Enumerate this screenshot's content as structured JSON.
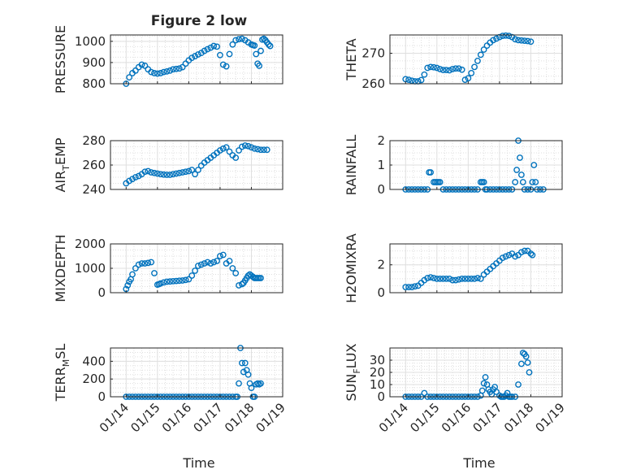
{
  "title": "Figure 2 low",
  "colors": {
    "marker": "#0072BD",
    "axis": "#262626",
    "grid": "#dfdfdf"
  },
  "xlabel": "Time",
  "xticks": [
    "01/14",
    "01/15",
    "01/16",
    "01/17",
    "01/18",
    "01/19"
  ],
  "chart_data": [
    {
      "type": "scatter",
      "name": "pressure",
      "ylabel": "PRESSURE",
      "ylim": [
        800,
        1030
      ],
      "yticks": [
        800,
        900,
        1000
      ],
      "x": [
        0.0,
        0.1,
        0.2,
        0.3,
        0.4,
        0.5,
        0.6,
        0.7,
        0.8,
        0.9,
        1.0,
        1.1,
        1.2,
        1.3,
        1.4,
        1.5,
        1.6,
        1.7,
        1.8,
        1.9,
        2.0,
        2.1,
        2.2,
        2.3,
        2.4,
        2.5,
        2.6,
        2.7,
        2.8,
        2.9,
        3.0,
        3.1,
        3.2,
        3.3,
        3.4,
        3.5,
        3.6,
        3.7,
        3.8,
        3.9,
        4.0,
        4.05,
        4.1,
        4.15,
        4.2,
        4.25,
        4.3,
        4.35,
        4.4,
        4.45,
        4.5,
        4.55,
        4.6
      ],
      "y": [
        800,
        830,
        850,
        862,
        878,
        890,
        885,
        868,
        855,
        850,
        848,
        850,
        855,
        858,
        862,
        868,
        870,
        872,
        878,
        895,
        910,
        922,
        930,
        938,
        945,
        955,
        963,
        970,
        978,
        975,
        935,
        890,
        882,
        940,
        985,
        1005,
        1010,
        1012,
        1005,
        995,
        985,
        982,
        980,
        940,
        895,
        885,
        955,
        1008,
        1012,
        1005,
        995,
        985,
        978
      ]
    },
    {
      "type": "scatter",
      "name": "theta",
      "ylabel": "THETA",
      "ylim": [
        260,
        276
      ],
      "yticks": [
        260,
        270
      ],
      "x": [
        0.0,
        0.1,
        0.2,
        0.3,
        0.4,
        0.5,
        0.6,
        0.7,
        0.8,
        0.9,
        1.0,
        1.1,
        1.2,
        1.3,
        1.4,
        1.5,
        1.6,
        1.7,
        1.8,
        1.9,
        2.0,
        2.1,
        2.2,
        2.3,
        2.4,
        2.5,
        2.6,
        2.7,
        2.8,
        2.9,
        3.0,
        3.1,
        3.2,
        3.3,
        3.4,
        3.5,
        3.6,
        3.7,
        3.8,
        3.9,
        4.0
      ],
      "y": [
        261.5,
        261.3,
        261,
        260.8,
        260.8,
        261.2,
        263,
        265.2,
        265.5,
        265.4,
        265.2,
        264.8,
        264.5,
        264.5,
        264.4,
        264.8,
        265,
        265,
        264.6,
        261.3,
        261.8,
        263.5,
        265.5,
        267.5,
        269.5,
        271.2,
        272.5,
        273.5,
        274.3,
        274.8,
        275.3,
        275.7,
        275.8,
        275.7,
        275.3,
        274.6,
        274.3,
        274.2,
        274.1,
        274,
        273.8
      ]
    },
    {
      "type": "scatter",
      "name": "air_temp",
      "ylabel": "AIR_TEMP",
      "ylim": [
        240,
        280
      ],
      "yticks": [
        240,
        260,
        280
      ],
      "x": [
        0.0,
        0.1,
        0.2,
        0.3,
        0.4,
        0.5,
        0.6,
        0.7,
        0.8,
        0.9,
        1.0,
        1.1,
        1.2,
        1.3,
        1.4,
        1.5,
        1.6,
        1.7,
        1.8,
        1.9,
        2.0,
        2.1,
        2.2,
        2.3,
        2.4,
        2.5,
        2.6,
        2.7,
        2.8,
        2.9,
        3.0,
        3.1,
        3.2,
        3.3,
        3.4,
        3.5,
        3.6,
        3.7,
        3.8,
        3.9,
        4.0,
        4.1,
        4.2,
        4.3,
        4.4,
        4.5
      ],
      "y": [
        245,
        247,
        248.5,
        250,
        251,
        252.5,
        254.5,
        255,
        254,
        253.5,
        253,
        252.5,
        252.2,
        252,
        252,
        252.5,
        253,
        253.5,
        254,
        254.5,
        255,
        256,
        252.5,
        256,
        259.5,
        262,
        264,
        266,
        268,
        270,
        272,
        273.5,
        274.5,
        271,
        268,
        266,
        272,
        275,
        276,
        275.5,
        274.5,
        273.5,
        273,
        272.5,
        272.5,
        272.5
      ]
    },
    {
      "type": "scatter",
      "name": "rainfall",
      "ylabel": "RAINFALL",
      "ylim": [
        0,
        2
      ],
      "yticks": [
        0,
        1,
        2
      ],
      "x": [
        0.0,
        0.1,
        0.2,
        0.3,
        0.4,
        0.5,
        0.6,
        0.7,
        0.75,
        0.8,
        0.9,
        0.95,
        1.0,
        1.05,
        1.1,
        1.2,
        1.3,
        1.4,
        1.5,
        1.6,
        1.7,
        1.8,
        1.9,
        2.0,
        2.1,
        2.2,
        2.3,
        2.4,
        2.45,
        2.5,
        2.55,
        2.6,
        2.7,
        2.8,
        2.9,
        3.0,
        3.1,
        3.2,
        3.3,
        3.4,
        3.5,
        3.55,
        3.6,
        3.65,
        3.7,
        3.75,
        3.8,
        3.9,
        4.0,
        4.05,
        4.1,
        4.15,
        4.2,
        4.3,
        4.4
      ],
      "y": [
        0,
        0,
        0,
        0,
        0,
        0,
        0,
        0,
        0.7,
        0.7,
        0.3,
        0.3,
        0.3,
        0.3,
        0.3,
        0,
        0,
        0,
        0,
        0,
        0,
        0,
        0,
        0,
        0,
        0,
        0,
        0.3,
        0.3,
        0.3,
        0,
        0,
        0,
        0,
        0,
        0,
        0,
        0,
        0,
        0,
        0.3,
        0.8,
        2.0,
        1.3,
        0.6,
        0.3,
        0,
        0,
        0,
        0.3,
        1.0,
        0.3,
        0,
        0,
        0
      ]
    },
    {
      "type": "scatter",
      "name": "mixdepth",
      "ylabel": "MIXDEPTH",
      "ylim": [
        0,
        2000
      ],
      "yticks": [
        0,
        1000,
        2000
      ],
      "x": [
        0.0,
        0.05,
        0.1,
        0.15,
        0.2,
        0.3,
        0.4,
        0.5,
        0.6,
        0.7,
        0.8,
        0.9,
        1.0,
        1.05,
        1.1,
        1.2,
        1.3,
        1.4,
        1.5,
        1.6,
        1.7,
        1.8,
        1.9,
        2.0,
        2.1,
        2.2,
        2.3,
        2.4,
        2.5,
        2.6,
        2.7,
        2.8,
        2.9,
        3.0,
        3.1,
        3.2,
        3.3,
        3.4,
        3.5,
        3.6,
        3.7,
        3.75,
        3.8,
        3.85,
        3.9,
        3.95,
        4.0,
        4.05,
        4.1,
        4.15,
        4.2,
        4.25,
        4.3
      ],
      "y": [
        150,
        300,
        450,
        550,
        750,
        1000,
        1150,
        1200,
        1200,
        1220,
        1250,
        800,
        330,
        350,
        380,
        420,
        450,
        460,
        470,
        480,
        490,
        500,
        520,
        550,
        700,
        900,
        1100,
        1150,
        1200,
        1250,
        1200,
        1250,
        1300,
        1500,
        1550,
        1200,
        1300,
        1000,
        800,
        300,
        350,
        400,
        500,
        600,
        700,
        750,
        700,
        650,
        600,
        600,
        600,
        600,
        600
      ]
    },
    {
      "type": "scatter",
      "name": "h2omixra",
      "ylabel": "H2OMIXRA",
      "ylim": [
        0,
        3.5
      ],
      "yticks": [
        0,
        2
      ],
      "x": [
        0.0,
        0.1,
        0.2,
        0.3,
        0.4,
        0.5,
        0.6,
        0.7,
        0.8,
        0.9,
        1.0,
        1.1,
        1.2,
        1.3,
        1.4,
        1.5,
        1.6,
        1.7,
        1.8,
        1.9,
        2.0,
        2.1,
        2.2,
        2.3,
        2.4,
        2.5,
        2.6,
        2.7,
        2.8,
        2.9,
        3.0,
        3.1,
        3.2,
        3.3,
        3.4,
        3.5,
        3.6,
        3.7,
        3.8,
        3.9,
        4.0,
        4.05
      ],
      "y": [
        0.4,
        0.4,
        0.4,
        0.45,
        0.5,
        0.7,
        0.9,
        1.05,
        1.1,
        1.05,
        1.0,
        1.0,
        1.0,
        1.0,
        1.0,
        0.9,
        0.9,
        0.95,
        1.0,
        1.0,
        1.0,
        1.0,
        1.0,
        1.05,
        1.0,
        1.3,
        1.5,
        1.7,
        1.9,
        2.1,
        2.3,
        2.5,
        2.6,
        2.7,
        2.8,
        2.6,
        2.7,
        2.9,
        3.0,
        3.0,
        2.8,
        2.7
      ]
    },
    {
      "type": "scatter",
      "name": "terr_msl",
      "ylabel": "TERR_MSL",
      "ylim": [
        0,
        550
      ],
      "yticks": [
        0,
        200,
        400
      ],
      "x": [
        0.0,
        0.1,
        0.2,
        0.3,
        0.4,
        0.5,
        0.6,
        0.7,
        0.8,
        0.9,
        1.0,
        1.1,
        1.2,
        1.3,
        1.4,
        1.5,
        1.6,
        1.7,
        1.8,
        1.9,
        2.0,
        2.1,
        2.2,
        2.3,
        2.4,
        2.5,
        2.6,
        2.7,
        2.8,
        2.9,
        3.0,
        3.1,
        3.2,
        3.3,
        3.4,
        3.5,
        3.55,
        3.6,
        3.65,
        3.7,
        3.75,
        3.8,
        3.85,
        3.9,
        3.95,
        4.0,
        4.05,
        4.1,
        4.15,
        4.2,
        4.25,
        4.3
      ],
      "y": [
        0,
        0,
        0,
        0,
        0,
        0,
        0,
        0,
        0,
        0,
        0,
        0,
        0,
        0,
        0,
        0,
        0,
        0,
        0,
        0,
        0,
        0,
        0,
        0,
        0,
        0,
        0,
        0,
        0,
        0,
        0,
        0,
        0,
        0,
        0,
        0,
        0,
        150,
        550,
        380,
        280,
        380,
        300,
        250,
        150,
        100,
        0,
        0,
        140,
        150,
        140,
        150
      ]
    },
    {
      "type": "scatter",
      "name": "sun_flux",
      "ylabel": "SUN_FLUX",
      "ylim": [
        0,
        40
      ],
      "yticks": [
        0,
        10,
        20,
        30
      ],
      "x": [
        0.0,
        0.1,
        0.2,
        0.3,
        0.4,
        0.5,
        0.6,
        0.7,
        0.8,
        0.9,
        1.0,
        1.1,
        1.2,
        1.3,
        1.4,
        1.5,
        1.6,
        1.7,
        1.8,
        1.9,
        2.0,
        2.1,
        2.2,
        2.3,
        2.4,
        2.45,
        2.5,
        2.55,
        2.6,
        2.65,
        2.7,
        2.75,
        2.8,
        2.85,
        2.9,
        3.0,
        3.05,
        3.1,
        3.15,
        3.2,
        3.25,
        3.3,
        3.35,
        3.4,
        3.5,
        3.6,
        3.7,
        3.75,
        3.8,
        3.85,
        3.9,
        3.95
      ],
      "y": [
        0,
        0,
        0,
        0,
        0,
        0,
        3,
        0,
        0,
        0,
        0,
        0,
        0,
        0,
        0,
        0,
        0,
        0,
        0,
        0,
        0,
        0,
        0,
        0,
        1,
        5,
        11,
        16,
        10,
        6,
        4,
        2,
        6,
        8,
        4,
        1,
        0,
        0,
        0,
        1,
        3,
        0,
        0,
        0,
        0,
        10,
        27,
        36,
        35,
        33,
        28,
        20
      ]
    }
  ]
}
